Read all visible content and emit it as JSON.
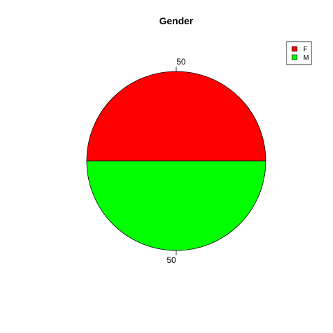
{
  "chart_data": {
    "type": "pie",
    "title": "Gender",
    "categories": [
      "F",
      "M"
    ],
    "values": [
      50,
      50
    ],
    "colors": [
      "#ff0000",
      "#00ff00"
    ],
    "slice_labels": [
      "50",
      "50"
    ],
    "legend": {
      "placement": "top-right",
      "entries": [
        "F",
        "M"
      ]
    }
  }
}
